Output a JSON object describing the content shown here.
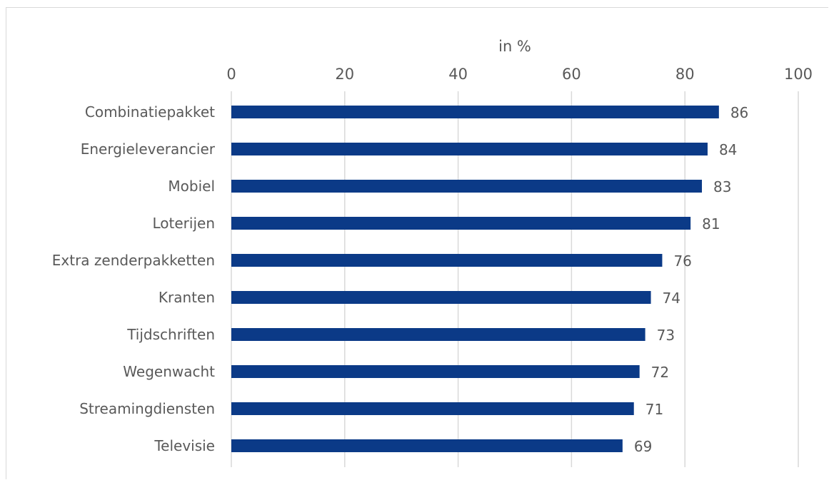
{
  "chart_data": {
    "type": "bar",
    "orientation": "horizontal",
    "title": "",
    "xlabel": "in %",
    "ylabel": "",
    "xlim": [
      0,
      100
    ],
    "xticks": [
      0,
      20,
      40,
      60,
      80,
      100
    ],
    "x_axis_position": "top",
    "grid": true,
    "legend": "none",
    "bar_color": "#0b3a87",
    "categories": [
      "Combinatiepakket",
      "Energieleverancier",
      "Mobiel",
      "Loterijen",
      "Extra zenderpakketten",
      "Kranten",
      "Tijdschriften",
      "Wegenwacht",
      "Streamingdiensten",
      "Televisie"
    ],
    "values": [
      86,
      84,
      83,
      81,
      76,
      74,
      73,
      72,
      71,
      69
    ]
  }
}
